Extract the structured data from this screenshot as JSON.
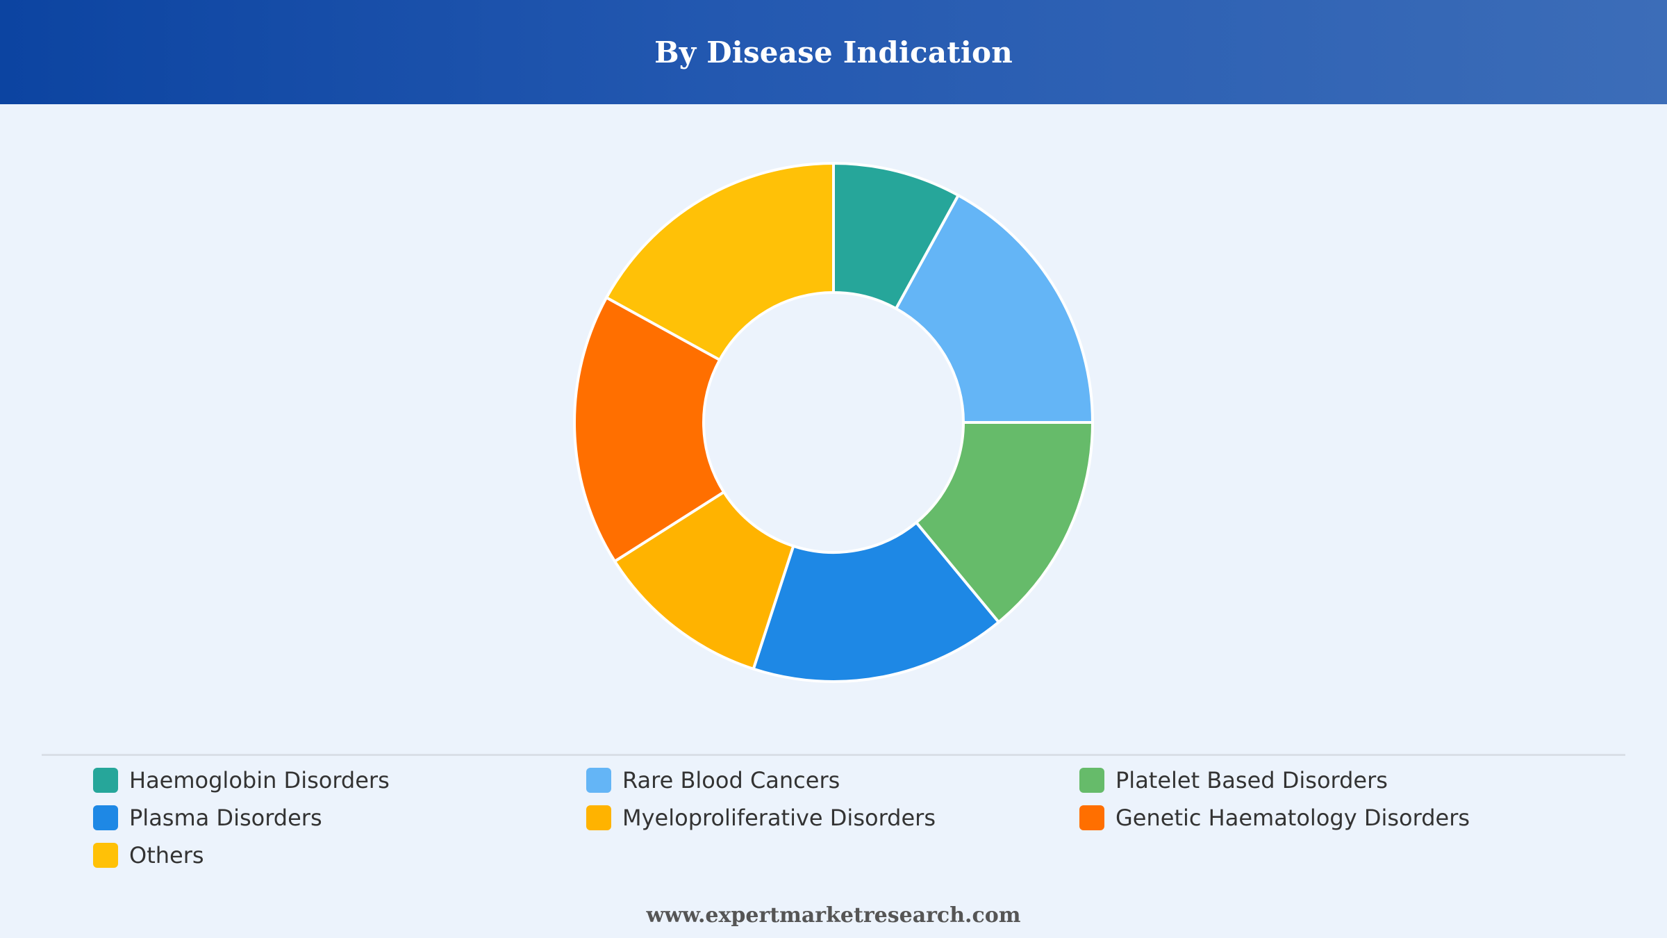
{
  "header": {
    "title": "By Disease Indication"
  },
  "chart_data": {
    "type": "pie",
    "variant": "donut",
    "title": "By Disease Indication",
    "categories": [
      "Haemoglobin Disorders",
      "Rare Blood Cancers",
      "Platelet Based Disorders",
      "Plasma Disorders",
      "Myeloproliferative Disorders",
      "Genetic Haematology Disorders",
      "Others"
    ],
    "values": [
      8,
      17,
      14,
      16,
      11,
      17,
      17
    ],
    "colors": [
      "#26a69a",
      "#64b5f6",
      "#66bb6a",
      "#1e88e5",
      "#ffb300",
      "#ff6f00",
      "#ffc107"
    ],
    "legend_position": "bottom"
  },
  "footer": {
    "source": "www.expertmarketresearch.com"
  }
}
